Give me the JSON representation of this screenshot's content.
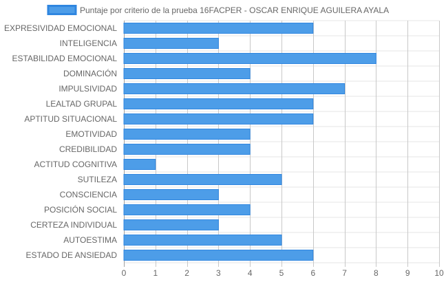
{
  "colors": {
    "bar_fill": "#4d9de8",
    "bar_stroke": "#2f86e0",
    "grid": "#e5e5e5",
    "grid_dark": "#a0a0a0",
    "text": "#666666"
  },
  "chart_data": {
    "type": "bar",
    "orientation": "horizontal",
    "categories": [
      "EXPRESIVIDAD EMOCIONAL",
      "INTELIGENCIA",
      "ESTABILIDAD EMOCIONAL",
      "DOMINACIÓN",
      "IMPULSIVIDAD",
      "LEALTAD GRUPAL",
      "APTITUD SITUACIONAL",
      "EMOTIVIDAD",
      "CREDIBILIDAD",
      "ACTITUD COGNITIVA",
      "SUTILEZA",
      "CONSCIENCIA",
      "POSICIÓN SOCIAL",
      "CERTEZA INDIVIDUAL",
      "AUTOESTIMA",
      "ESTADO DE ANSIEDAD"
    ],
    "series": [
      {
        "name": "Puntaje por criterio de la prueba 16FACPER - OSCAR ENRIQUE AGUILERA AYALA",
        "values": [
          6,
          3,
          8,
          4,
          7,
          6,
          6,
          4,
          4,
          1,
          5,
          3,
          4,
          3,
          5,
          6
        ]
      }
    ],
    "xlim": [
      0,
      10
    ],
    "xticks": [
      "0",
      "1",
      "2",
      "3",
      "4",
      "5",
      "6",
      "7",
      "8",
      "9",
      "10"
    ],
    "grid": true,
    "legend_position": "top"
  }
}
